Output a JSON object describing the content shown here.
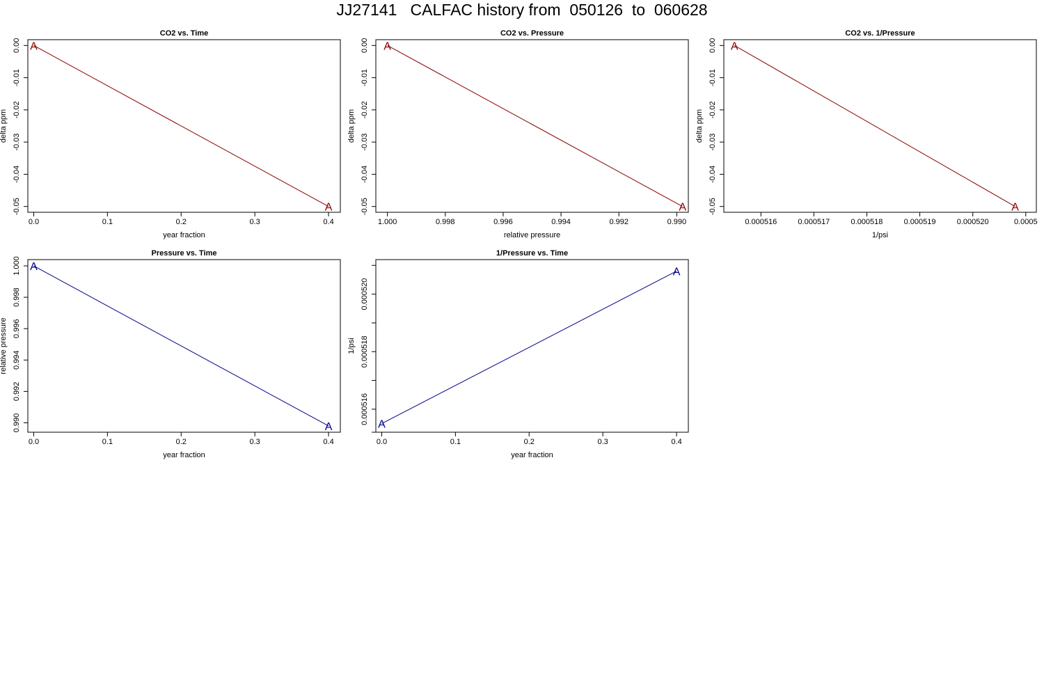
{
  "page": {
    "title": "JJ27141   CALFAC history from  050126  to  060628"
  },
  "colors": {
    "co2_series": "#8b0000",
    "pressure_series": "#00008b",
    "axis": "#000000",
    "background": "#ffffff"
  },
  "chart_data": [
    {
      "type": "line",
      "title": "CO2 vs. Time",
      "xlabel": "year fraction",
      "ylabel": "delta ppm",
      "xlim": [
        -0.008,
        0.416
      ],
      "ylim": [
        -0.0518,
        0.0018
      ],
      "xticks": [
        0.0,
        0.1,
        0.2,
        0.3,
        0.4
      ],
      "xtick_labels": [
        "0.0",
        "0.1",
        "0.2",
        "0.3",
        "0.4"
      ],
      "yticks": [
        0.0,
        -0.01,
        -0.02,
        -0.03,
        -0.04,
        -0.05
      ],
      "ytick_labels": [
        "0.00",
        "-0.01",
        "-0.02",
        "-0.03",
        "-0.04",
        "-0.05"
      ],
      "points": [
        {
          "x": 0.0,
          "y": 0.0,
          "label": "A"
        },
        {
          "x": 0.4,
          "y": -0.05,
          "label": "A"
        }
      ],
      "color": "#8b0000",
      "grid": false
    },
    {
      "type": "line",
      "title": "CO2 vs. Pressure",
      "xlabel": "relative pressure",
      "ylabel": "delta ppm",
      "xlim": [
        1.0004,
        0.9896
      ],
      "ylim": [
        -0.0518,
        0.0018
      ],
      "xticks": [
        1.0,
        0.998,
        0.996,
        0.994,
        0.992,
        0.99
      ],
      "xtick_labels": [
        "1.000",
        "0.998",
        "0.996",
        "0.994",
        "0.992",
        "0.990"
      ],
      "yticks": [
        0.0,
        -0.01,
        -0.02,
        -0.03,
        -0.04,
        -0.05
      ],
      "ytick_labels": [
        "0.00",
        "-0.01",
        "-0.02",
        "-0.03",
        "-0.04",
        "-0.05"
      ],
      "points": [
        {
          "x": 1.0,
          "y": 0.0,
          "label": "A"
        },
        {
          "x": 0.9898,
          "y": -0.05,
          "label": "A"
        }
      ],
      "color": "#8b0000",
      "grid": false
    },
    {
      "type": "line",
      "title": "CO2 vs. 1/Pressure",
      "xlabel": "1/psi",
      "ylabel": "delta ppm",
      "xlim": [
        0.0005153,
        0.0005212
      ],
      "ylim": [
        -0.0518,
        0.0018
      ],
      "xticks": [
        0.000516,
        0.000517,
        0.000518,
        0.000519,
        0.00052,
        0.000521
      ],
      "xtick_labels": [
        "0.000516",
        "0.000517",
        "0.000518",
        "0.000519",
        "0.000520",
        "0.0005"
      ],
      "yticks": [
        0.0,
        -0.01,
        -0.02,
        -0.03,
        -0.04,
        -0.05
      ],
      "ytick_labels": [
        "0.00",
        "-0.01",
        "-0.02",
        "-0.03",
        "-0.04",
        "-0.05"
      ],
      "points": [
        {
          "x": 0.0005155,
          "y": 0.0,
          "label": "A"
        },
        {
          "x": 0.0005208,
          "y": -0.05,
          "label": "A"
        }
      ],
      "color": "#8b0000",
      "grid": false
    },
    {
      "type": "line",
      "title": "Pressure vs. Time",
      "xlabel": "year fraction",
      "ylabel": "relative pressure",
      "xlim": [
        -0.008,
        0.416
      ],
      "ylim": [
        0.9894,
        1.0004
      ],
      "xticks": [
        0.0,
        0.1,
        0.2,
        0.3,
        0.4
      ],
      "xtick_labels": [
        "0.0",
        "0.1",
        "0.2",
        "0.3",
        "0.4"
      ],
      "yticks": [
        1.0,
        0.998,
        0.996,
        0.994,
        0.992,
        0.99
      ],
      "ytick_labels": [
        "1.000",
        "0.998",
        "0.996",
        "0.994",
        "0.992",
        "0.990"
      ],
      "points": [
        {
          "x": 0.0,
          "y": 1.0,
          "label": "A"
        },
        {
          "x": 0.4,
          "y": 0.9898,
          "label": "A"
        }
      ],
      "color": "#00008b",
      "grid": false
    },
    {
      "type": "line",
      "title": "1/Pressure vs. Time",
      "xlabel": "year fraction",
      "ylabel": "1/psi",
      "xlim": [
        -0.008,
        0.416
      ],
      "ylim": [
        0.0005152,
        0.0005212
      ],
      "xticks": [
        0.0,
        0.1,
        0.2,
        0.3,
        0.4
      ],
      "xtick_labels": [
        "0.0",
        "0.1",
        "0.2",
        "0.3",
        "0.4"
      ],
      "yticks": [
        0.0005152,
        0.000516,
        0.000517,
        0.000518,
        0.000519,
        0.00052,
        0.000521
      ],
      "ytick_labels": [
        "",
        "0.000516",
        "",
        "0.000518",
        "",
        "0.000520",
        ""
      ],
      "points": [
        {
          "x": 0.0,
          "y": 0.0005155,
          "label": "A"
        },
        {
          "x": 0.4,
          "y": 0.0005208,
          "label": "A"
        }
      ],
      "color": "#00008b",
      "grid": false
    }
  ]
}
